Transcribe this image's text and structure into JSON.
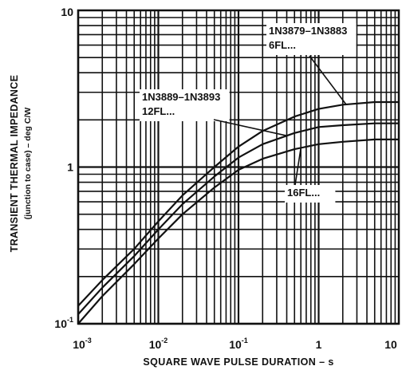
{
  "chart_data": {
    "type": "line",
    "xscale": "log",
    "yscale": "log",
    "xlim": [
      0.001,
      10
    ],
    "ylim": [
      0.1,
      10
    ],
    "grid": true,
    "xlabel": "SQUARE WAVE PULSE DURATION – s",
    "ylabel": "TRANSIENT THERMAL IMPEDANCE",
    "ylabel2": "(junction to case) – deg C/W",
    "x_ticks": [
      {
        "value": 0.001,
        "base": "10",
        "exp": "-3"
      },
      {
        "value": 0.01,
        "base": "10",
        "exp": "-2"
      },
      {
        "value": 0.1,
        "base": "10",
        "exp": "-1"
      },
      {
        "value": 1,
        "base": "1",
        "exp": ""
      },
      {
        "value": 10,
        "base": "10",
        "exp": ""
      }
    ],
    "y_ticks": [
      {
        "value": 0.1,
        "base": "10",
        "exp": "-1"
      },
      {
        "value": 1,
        "base": "1",
        "exp": ""
      },
      {
        "value": 10,
        "base": "10",
        "exp": ""
      }
    ],
    "series": [
      {
        "name": "1N3879–1N3883 6FL...",
        "x": [
          0.001,
          0.002,
          0.005,
          0.01,
          0.02,
          0.05,
          0.1,
          0.2,
          0.5,
          1,
          2,
          5,
          10
        ],
        "y": [
          0.13,
          0.19,
          0.3,
          0.45,
          0.66,
          1.0,
          1.35,
          1.7,
          2.1,
          2.35,
          2.5,
          2.6,
          2.6
        ]
      },
      {
        "name": "1N3889–1N3893 12FL...",
        "x": [
          0.001,
          0.002,
          0.005,
          0.01,
          0.02,
          0.05,
          0.1,
          0.2,
          0.5,
          1,
          2,
          5,
          10
        ],
        "y": [
          0.115,
          0.17,
          0.27,
          0.4,
          0.58,
          0.87,
          1.15,
          1.4,
          1.65,
          1.8,
          1.85,
          1.9,
          1.9
        ]
      },
      {
        "name": "16FL...",
        "x": [
          0.001,
          0.002,
          0.005,
          0.01,
          0.02,
          0.05,
          0.1,
          0.2,
          0.5,
          1,
          2,
          5,
          10
        ],
        "y": [
          0.1,
          0.15,
          0.24,
          0.35,
          0.5,
          0.74,
          0.96,
          1.13,
          1.3,
          1.4,
          1.45,
          1.5,
          1.5
        ]
      }
    ],
    "annotations": [
      {
        "lines": [
          "1N3879–1N3883",
          "6FL..."
        ],
        "series": "1N3879–1N3883 6FL..."
      },
      {
        "lines": [
          "1N3889–1N3893",
          "12FL..."
        ],
        "series": "1N3889–1N3893 12FL..."
      },
      {
        "lines": [
          "16FL..."
        ],
        "series": "16FL..."
      }
    ]
  }
}
